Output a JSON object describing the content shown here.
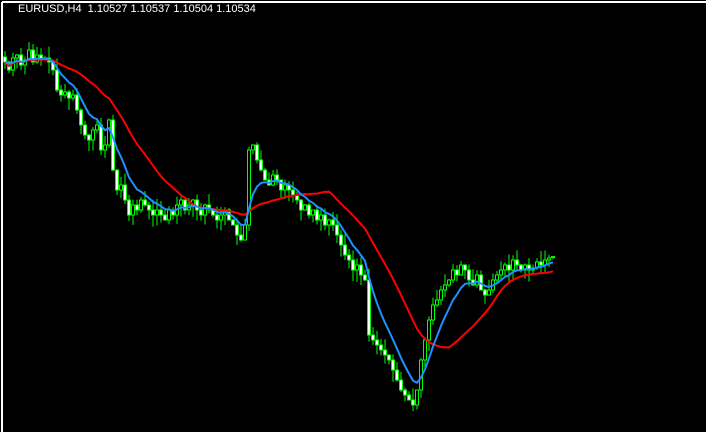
{
  "chart_data": {
    "type": "candlestick",
    "symbol": "EURUSD",
    "timeframe": "H4",
    "last_bar": {
      "open": 1.10527,
      "high": 1.10537,
      "low": 1.10504,
      "close": 1.10534
    },
    "grid": false,
    "colors": {
      "background": "#000000",
      "candle": "#00ff00",
      "bull_fill": "#000000",
      "bear_fill": "#ffffff",
      "fast_ma": "#1e90ff",
      "slow_ma": "#ff0000",
      "frame": "#ffffff"
    },
    "closes": [
      1.1248,
      1.124,
      1.1252,
      1.1255,
      1.1245,
      1.125,
      1.126,
      1.1248,
      1.1255,
      1.125,
      1.1252,
      1.1248,
      1.124,
      1.122,
      1.1215,
      1.1218,
      1.1212,
      1.1215,
      1.12,
      1.1185,
      1.1175,
      1.117,
      1.118,
      1.1185,
      1.116,
      1.1165,
      1.119,
      1.114,
      1.112,
      1.1125,
      1.111,
      1.1095,
      1.1105,
      1.11,
      1.111,
      1.1105,
      1.11,
      1.1095,
      1.11,
      1.1095,
      1.109,
      1.11,
      1.1095,
      1.1105,
      1.111,
      1.11,
      1.1105,
      1.111,
      1.11,
      1.1095,
      1.1105,
      1.11,
      1.1095,
      1.109,
      1.1095,
      1.11,
      1.109,
      1.1085,
      1.1075,
      1.107,
      1.1085,
      1.116,
      1.1165,
      1.115,
      1.114,
      1.113,
      1.1125,
      1.1135,
      1.113,
      1.112,
      1.1125,
      1.112,
      1.1115,
      1.111,
      1.11,
      1.1105,
      1.1095,
      1.11,
      1.109,
      1.1095,
      1.1085,
      1.109,
      1.1085,
      1.1075,
      1.1065,
      1.1055,
      1.105,
      1.104,
      1.1045,
      1.1035,
      1.103,
      1.0975,
      1.097,
      1.0965,
      1.096,
      1.0955,
      1.095,
      1.094,
      1.093,
      1.092,
      1.0915,
      1.091,
      1.0905,
      1.092,
      1.095,
      1.097,
      1.099,
      1.1005,
      1.101,
      1.102,
      1.1025,
      1.103,
      1.104,
      1.1035,
      1.1045,
      1.104,
      1.103,
      1.1025,
      1.1035,
      1.102,
      1.1015,
      1.102,
      1.103,
      1.1035,
      1.104,
      1.1045,
      1.104,
      1.105,
      1.1045,
      1.104,
      1.1045,
      1.104,
      1.1042,
      1.1048,
      1.1045,
      1.105,
      1.1052,
      1.10534
    ]
  },
  "header": {
    "title": "EURUSD,H4  1.10527 1.10537 1.10504 1.10534"
  }
}
